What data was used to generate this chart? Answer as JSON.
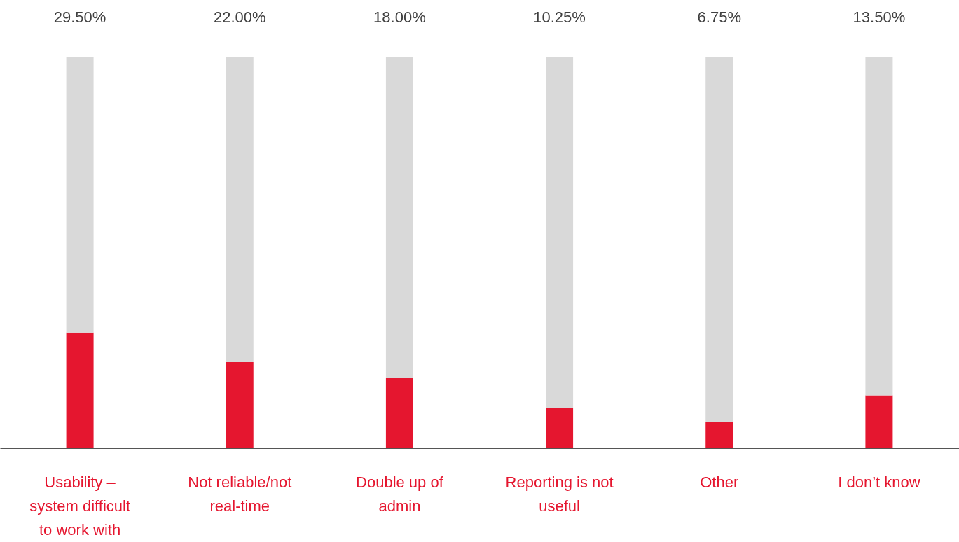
{
  "chart_data": {
    "type": "bar",
    "stacked": true,
    "categories": [
      "Usability – system difficult to work with",
      "Not reliable/not real-time",
      "Double up of admin",
      "Reporting is not useful",
      "Other",
      "I don’t know"
    ],
    "series": [
      {
        "color": "#e5162f",
        "values": [
          29.5,
          22.0,
          18.0,
          10.25,
          6.75,
          13.5
        ],
        "value_labels": [
          "29.50%",
          "22.00%",
          "18.00%",
          "10.25%",
          "6.75%",
          "13.50%"
        ]
      },
      {
        "color": "#d9d9d9",
        "values": [
          70.5,
          78.0,
          82.0,
          89.75,
          93.25,
          86.5
        ]
      }
    ],
    "ylim": [
      0,
      100
    ],
    "tick_labels": "x",
    "grid": false
  }
}
